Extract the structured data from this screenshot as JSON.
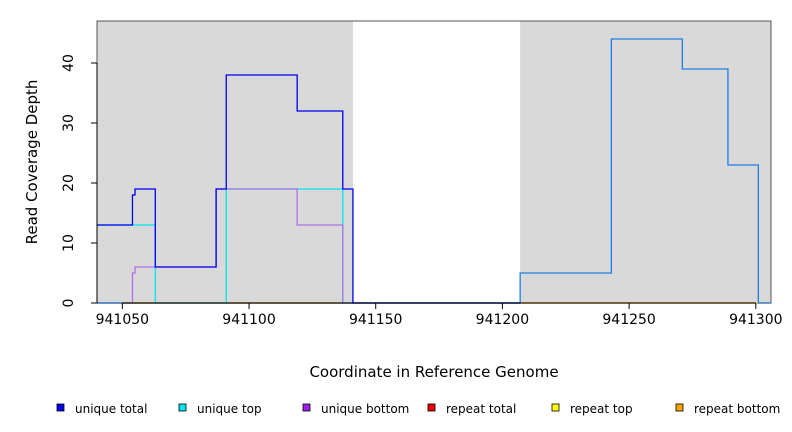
{
  "chart_data": {
    "type": "line",
    "title": "",
    "xlabel": "Coordinate in Reference Genome",
    "ylabel": "Read Coverage Depth",
    "xlim": [
      941040,
      941306
    ],
    "ylim": [
      0,
      47
    ],
    "x_ticks": [
      941050,
      941100,
      941150,
      941200,
      941250,
      941300
    ],
    "y_ticks": [
      0,
      10,
      20,
      30,
      40
    ],
    "grid": false,
    "shaded_regions": [
      [
        941040,
        941141
      ],
      [
        941207,
        941306
      ]
    ],
    "legend_position": "bottom",
    "series": [
      {
        "name": "unique total",
        "color": "#0000ee",
        "x": [
          941040,
          941054,
          941055,
          941063,
          941087,
          941091,
          941119,
          941137,
          941141,
          941207
        ],
        "y": [
          13,
          18,
          19,
          6,
          19,
          38,
          32,
          19,
          0,
          0
        ]
      },
      {
        "name": "unique top",
        "color": "#00e5ee",
        "x": [
          941040,
          941063,
          941091,
          941137,
          941141,
          941207
        ],
        "y": [
          13,
          0,
          19,
          0,
          0,
          0
        ]
      },
      {
        "name": "unique bottom",
        "color": "#b070e8",
        "x": [
          941040,
          941054,
          941055,
          941063,
          941087,
          941119,
          941137,
          941207
        ],
        "y": [
          0,
          5,
          6,
          6,
          19,
          13,
          0,
          0
        ]
      },
      {
        "name": "repeat total",
        "color": "#ee0000",
        "x": [
          941040,
          941306
        ],
        "y": [
          0,
          0
        ]
      },
      {
        "name": "repeat top",
        "color": "#eeee00",
        "x": [
          941040,
          941306
        ],
        "y": [
          0,
          0
        ]
      },
      {
        "name": "repeat bottom",
        "color": "#f0a000",
        "x": [
          941040,
          941141
        ],
        "y": [
          0,
          0
        ]
      },
      {
        "name": "",
        "color": "#1c7fe8",
        "x": [
          941040,
          941207,
          941243,
          941271,
          941289,
          941301,
          941306
        ],
        "y": [
          0,
          5,
          44,
          39,
          23,
          0,
          0
        ]
      }
    ]
  }
}
